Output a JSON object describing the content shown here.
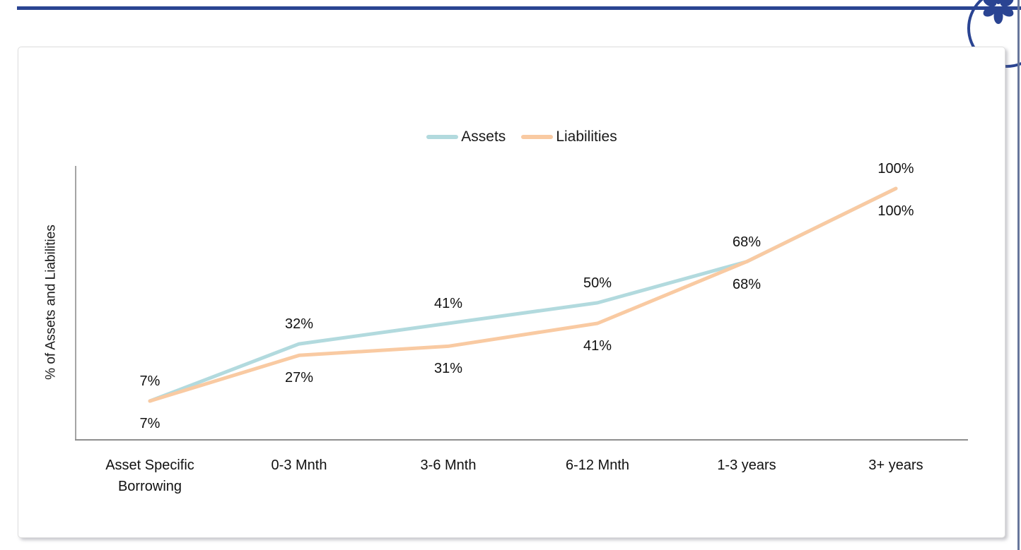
{
  "header": {
    "logo_icon": "flower-asterisk-icon",
    "rule_color": "#2a4492",
    "page_edge_color": "#67769b"
  },
  "chart_data": {
    "type": "line",
    "title": "",
    "ylabel": "% of Assets and Liabilities",
    "xlabel": "",
    "categories": [
      "Asset Specific Borrowing",
      "0-3 Mnth",
      "3-6 Mnth",
      "6-12 Mnth",
      "1-3 years",
      "3+ years"
    ],
    "series": [
      {
        "name": "Assets",
        "color": "#b2dade",
        "values": [
          7,
          32,
          41,
          50,
          68,
          100
        ],
        "point_labels": [
          "7%",
          "32%",
          "41%",
          "50%",
          "68%",
          "100%"
        ],
        "label_side": "above"
      },
      {
        "name": "Liabilities",
        "color": "#f9caa2",
        "values": [
          7,
          27,
          31,
          41,
          68,
          100
        ],
        "point_labels": [
          "7%",
          "27%",
          "31%",
          "41%",
          "68%",
          "100%"
        ],
        "label_side": "below"
      }
    ],
    "legend_position": "top-center",
    "grid": false,
    "axis_color": "#8e8e8e",
    "y_axis_range_implied": [
      -10,
      110
    ]
  }
}
